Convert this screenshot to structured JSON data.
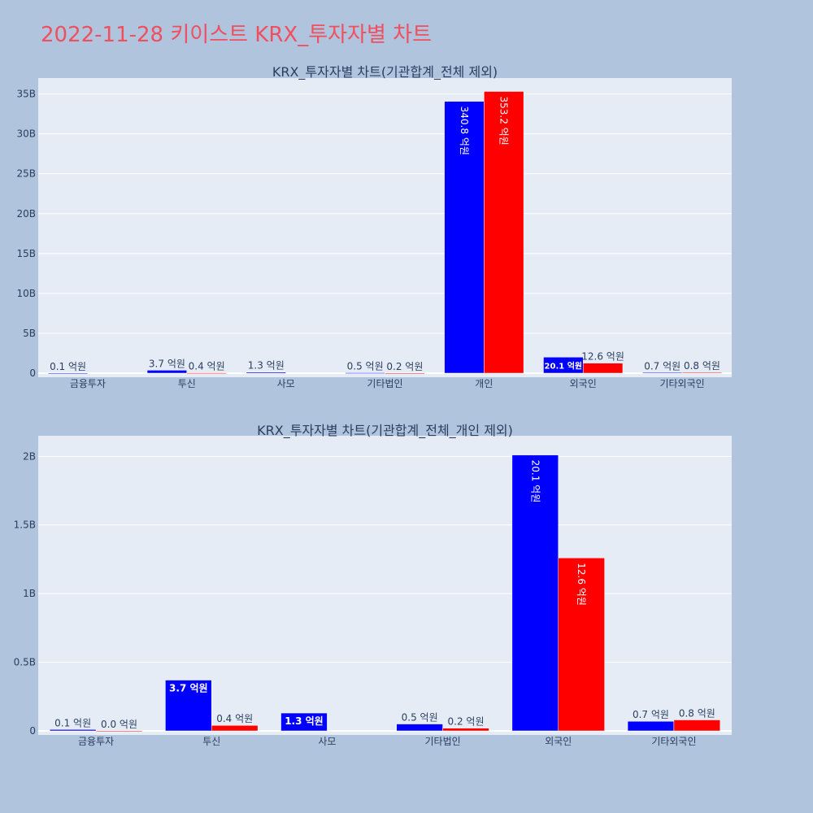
{
  "page": {
    "title": "2022-11-28 키이스트 KRX_투자자별 차트"
  },
  "colors": {
    "background": "#b0c4de",
    "plot_bg": "#e5ecf6",
    "series_1": "#0000ff",
    "series_2": "#ff0000",
    "title": "#ef4f5f",
    "text": "#2a3f5f"
  },
  "chart_data": [
    {
      "type": "bar",
      "title": "KRX_투자자별 차트(기관합계_전체 제외)",
      "categories": [
        "금융투자",
        "투신",
        "사모",
        "기타법인",
        "개인",
        "외국인",
        "기타외국인"
      ],
      "series": [
        {
          "color": "#0000ff",
          "values": [
            10000000,
            370000000,
            130000000,
            50000000,
            34080000000,
            2010000000,
            70000000
          ],
          "labels": [
            "0.1 억원",
            "3.7 억원",
            "1.3 억원",
            "0.5 억원",
            "340.8 억원",
            "20.1 억원",
            "0.7 억원"
          ]
        },
        {
          "color": "#ff0000",
          "values": [
            0,
            40000000,
            0,
            20000000,
            35320000000,
            1260000000,
            80000000
          ],
          "labels": [
            "",
            "0.4 억원",
            "",
            "0.2 억원",
            "353.2 억원",
            "12.6 억원",
            "0.8 억원"
          ]
        }
      ],
      "ylim": [
        0,
        37000000000
      ],
      "yticks": [
        {
          "value": 0,
          "label": "0"
        },
        {
          "value": 5000000000,
          "label": "5B"
        },
        {
          "value": 10000000000,
          "label": "10B"
        },
        {
          "value": 15000000000,
          "label": "15B"
        },
        {
          "value": 20000000000,
          "label": "20B"
        },
        {
          "value": 25000000000,
          "label": "25B"
        },
        {
          "value": 30000000000,
          "label": "30B"
        },
        {
          "value": 35000000000,
          "label": "35B"
        }
      ],
      "grid": true,
      "xlabel": "",
      "ylabel": ""
    },
    {
      "type": "bar",
      "title": "KRX_투자자별 차트(기관합계_전체_개인 제외)",
      "categories": [
        "금융투자",
        "투신",
        "사모",
        "기타법인",
        "외국인",
        "기타외국인"
      ],
      "series": [
        {
          "color": "#0000ff",
          "values": [
            10000000,
            370000000,
            130000000,
            50000000,
            2010000000,
            70000000
          ],
          "labels": [
            "0.1 억원",
            "3.7 억원",
            "1.3 억원",
            "0.5 억원",
            "20.1 억원",
            "0.7 억원"
          ]
        },
        {
          "color": "#ff0000",
          "values": [
            1000000,
            40000000,
            0,
            20000000,
            1260000000,
            80000000
          ],
          "labels": [
            "0.0 억원",
            "0.4 억원",
            "",
            "0.2 억원",
            "12.6 억원",
            "0.8 억원"
          ]
        }
      ],
      "ylim": [
        0,
        2150000000
      ],
      "yticks": [
        {
          "value": 0,
          "label": "0"
        },
        {
          "value": 500000000,
          "label": "0.5B"
        },
        {
          "value": 1000000000,
          "label": "1B"
        },
        {
          "value": 1500000000,
          "label": "1.5B"
        },
        {
          "value": 2000000000,
          "label": "2B"
        }
      ],
      "grid": true,
      "xlabel": "",
      "ylabel": ""
    }
  ]
}
